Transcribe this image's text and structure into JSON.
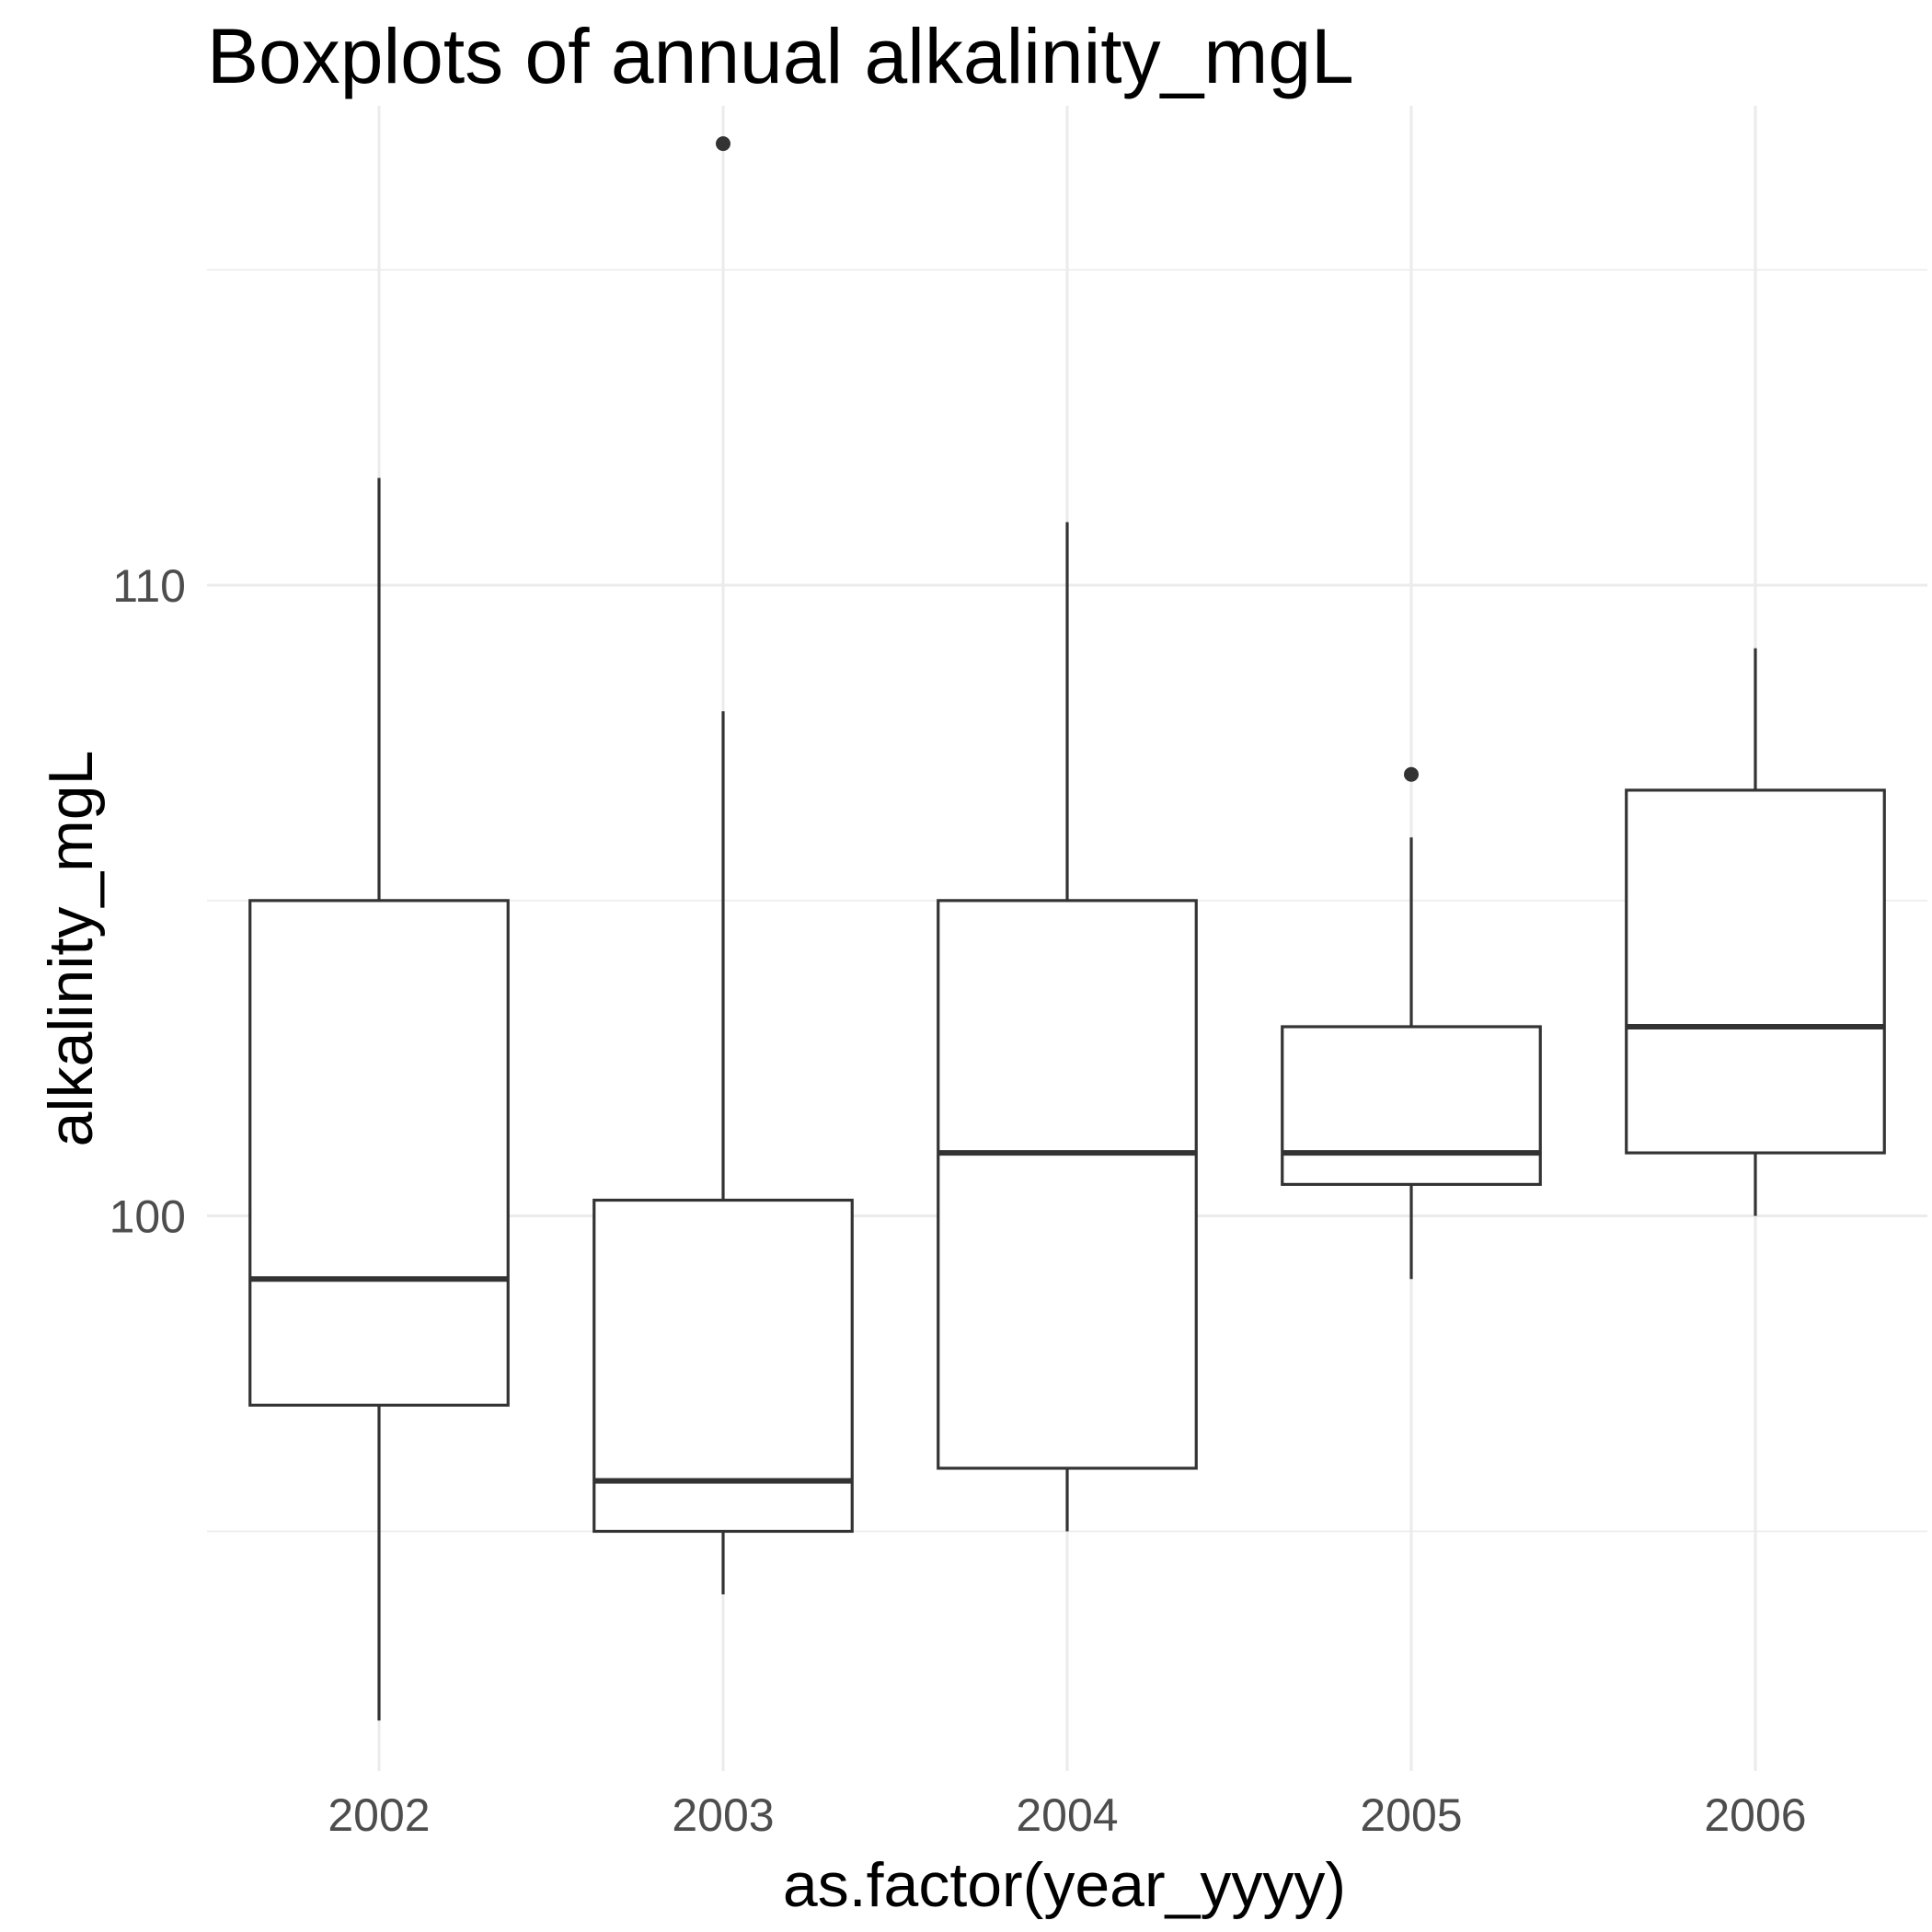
{
  "chart_data": {
    "type": "boxplot",
    "title": "Boxplots of annual alkalinity_mgL",
    "xlabel": "as.factor(year_yyyy)",
    "ylabel": "alkalinity_mgL",
    "ylim": [
      91.2,
      117.6
    ],
    "yticks": [
      100,
      110
    ],
    "yticks_minor": [
      95,
      105,
      115
    ],
    "grid": true,
    "legend": "none",
    "categories": [
      "2002",
      "2003",
      "2004",
      "2005",
      "2006"
    ],
    "boxes": [
      {
        "category": "2002",
        "whisker_low": 92.0,
        "q1": 97.0,
        "median": 99.0,
        "q3": 105.0,
        "whisker_high": 111.7,
        "outliers": []
      },
      {
        "category": "2003",
        "whisker_low": 94.0,
        "q1": 95.0,
        "median": 95.8,
        "q3": 100.25,
        "whisker_high": 108.0,
        "outliers": [
          117.0
        ]
      },
      {
        "category": "2004",
        "whisker_low": 95.0,
        "q1": 96.0,
        "median": 101.0,
        "q3": 105.0,
        "whisker_high": 111.0,
        "outliers": []
      },
      {
        "category": "2005",
        "whisker_low": 99.0,
        "q1": 100.5,
        "median": 101.0,
        "q3": 103.0,
        "whisker_high": 106.0,
        "outliers": [
          107.0
        ]
      },
      {
        "category": "2006",
        "whisker_low": 100.0,
        "q1": 101.0,
        "median": 103.0,
        "q3": 106.75,
        "whisker_high": 109.0,
        "outliers": []
      }
    ]
  },
  "colors": {
    "background": "#ffffff",
    "grid": "#ebebeb",
    "box_line": "#333333",
    "tick_text": "#4d4d4d",
    "title_text": "#000000"
  }
}
